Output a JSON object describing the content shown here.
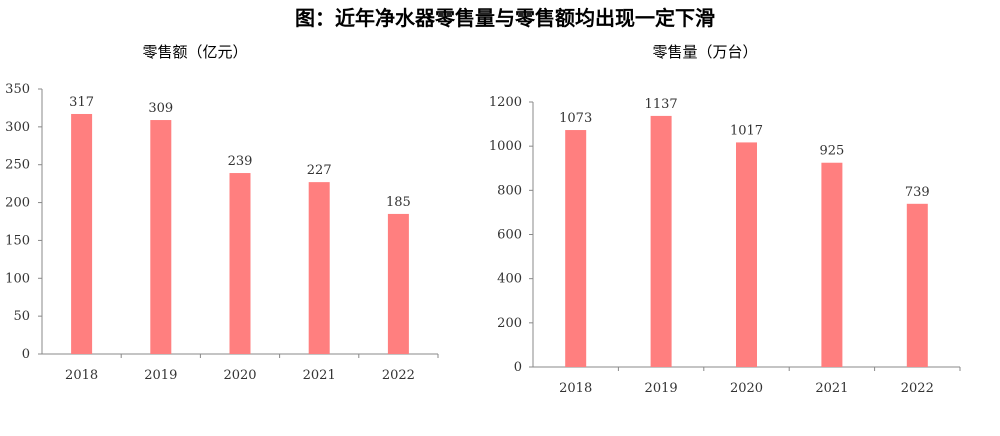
{
  "title": "图：近年净水器零售量与零售额均出现一定下滑",
  "colors": {
    "bar": "#ff7f7f",
    "axis": "#888888"
  },
  "chart_data": [
    {
      "type": "bar",
      "title": "零售额（亿元）",
      "categories": [
        "2018",
        "2019",
        "2020",
        "2021",
        "2022"
      ],
      "values": [
        317,
        309,
        239,
        227,
        185
      ],
      "ylim": [
        0,
        350
      ],
      "yticks": [
        0,
        50,
        100,
        150,
        200,
        250,
        300,
        350
      ],
      "grid": false
    },
    {
      "type": "bar",
      "title": "零售量（万台）",
      "categories": [
        "2018",
        "2019",
        "2020",
        "2021",
        "2022"
      ],
      "values": [
        1073,
        1137,
        1017,
        925,
        739
      ],
      "ylim": [
        0,
        1200
      ],
      "yticks": [
        0,
        200,
        400,
        600,
        800,
        1000,
        1200
      ],
      "grid": false
    }
  ]
}
